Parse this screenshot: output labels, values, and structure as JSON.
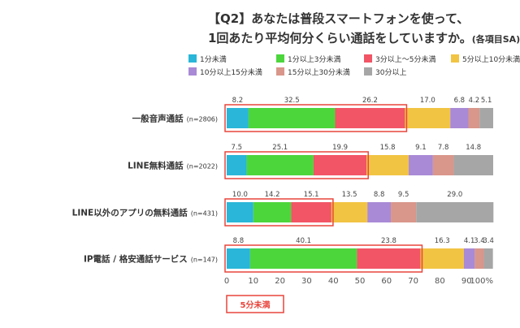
{
  "chart_data": {
    "type": "bar",
    "orientation": "horizontal",
    "stacked": true,
    "title_line1": "【Q2】あなたは普段スマートフォンを使って、",
    "title_line2": "1回あたり平均何分くらい通話をしていますか。",
    "title_suffix": "(各項目SA)",
    "categories": [
      {
        "label": "一般音声通話",
        "n": "(n=2806)"
      },
      {
        "label": "LINE無料通話",
        "n": "(n=2022)"
      },
      {
        "label": "LINE以外のアプリの無料通話",
        "n": "(n=431)"
      },
      {
        "label": "IP電話 / 格安通話サービス",
        "n": "(n=147)"
      }
    ],
    "series": [
      {
        "name": "1分未満",
        "color": "#29b6d8",
        "values": [
          8.2,
          7.5,
          10.0,
          8.8
        ],
        "labels": [
          "8.2",
          "7.5",
          "10.0",
          "8.8"
        ]
      },
      {
        "name": "1分以上3分未満",
        "color": "#4cd63c",
        "values": [
          32.5,
          25.1,
          14.2,
          40.1
        ],
        "labels": [
          "32.5",
          "25.1",
          "14.2",
          "40.1"
        ]
      },
      {
        "name": "3分以上〜5分未満",
        "color": "#f25566",
        "values": [
          26.2,
          19.9,
          15.1,
          23.8
        ],
        "labels": [
          "26.2",
          "19.9",
          "15.1",
          "23.8"
        ]
      },
      {
        "name": "5分以上10分未満",
        "color": "#f2c443",
        "values": [
          17.0,
          15.8,
          13.5,
          16.3
        ],
        "labels": [
          "17.0",
          "15.8",
          "13.5",
          "16.3"
        ]
      },
      {
        "name": "10分以上15分未満",
        "color": "#a98ad6",
        "values": [
          6.8,
          9.1,
          8.8,
          4.1
        ],
        "labels": [
          "6.8",
          "9.1",
          "8.8",
          "4.1"
        ]
      },
      {
        "name": "15分以上30分未満",
        "color": "#d9968a",
        "values": [
          4.2,
          7.8,
          9.5,
          3.4
        ],
        "labels": [
          "4.2",
          "7.8",
          "9.5",
          "3.4"
        ]
      },
      {
        "name": "30分以上",
        "color": "#a6a6a6",
        "values": [
          5.1,
          14.8,
          29.0,
          3.4
        ],
        "labels": [
          "5.1",
          "14.8",
          "29.0",
          "3.4"
        ]
      }
    ],
    "xticks": [
      "0",
      "10",
      "20",
      "30",
      "40",
      "50",
      "60",
      "70",
      "80",
      "90",
      "100%"
    ],
    "xlim": [
      0,
      100
    ],
    "highlight": {
      "label": "5分未満",
      "series_count": 3,
      "color": "#e8453c"
    }
  }
}
